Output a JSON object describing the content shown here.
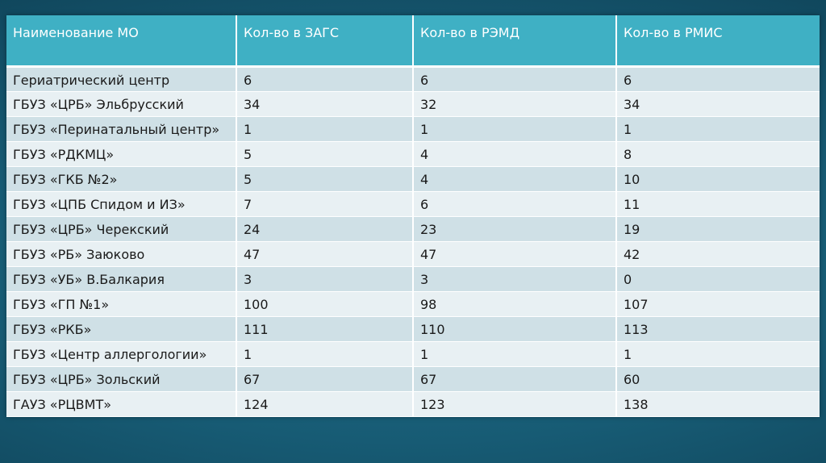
{
  "table": {
    "headers": [
      "Наименование МО",
      "Кол-во в ЗАГС",
      "Кол-во в РЭМД",
      "Кол-во в РМИС"
    ],
    "rows": [
      [
        "Гериатрический центр",
        "6",
        "6",
        "6"
      ],
      [
        "ГБУЗ «ЦРБ» Эльбрусский",
        "34",
        "32",
        "34"
      ],
      [
        "ГБУЗ «Перинатальный центр»",
        "1",
        "1",
        "1"
      ],
      [
        "ГБУЗ «РДКМЦ»",
        "5",
        "4",
        "8"
      ],
      [
        "ГБУЗ «ГКБ №2»",
        "5",
        "4",
        "10"
      ],
      [
        "ГБУЗ «ЦПБ Спидом и ИЗ»",
        "7",
        "6",
        "11"
      ],
      [
        "ГБУЗ «ЦРБ» Черекский",
        "24",
        "23",
        "19"
      ],
      [
        "ГБУЗ «РБ» Заюково",
        "47",
        "47",
        "42"
      ],
      [
        "ГБУЗ «УБ» В.Балкария",
        "3",
        "3",
        "0"
      ],
      [
        "ГБУЗ «ГП №1»",
        "100",
        "98",
        "107"
      ],
      [
        "ГБУЗ «РКБ»",
        "111",
        "110",
        "113"
      ],
      [
        "ГБУЗ «Центр аллергологии»",
        "1",
        "1",
        "1"
      ],
      [
        "ГБУЗ «ЦРБ» Зольский",
        "67",
        "67",
        "60"
      ],
      [
        "ГАУЗ «РЦВМТ»",
        "124",
        "123",
        "138"
      ]
    ]
  },
  "colors": {
    "header_bg": "#3fb0c4",
    "row_odd": "#cfe0e6",
    "row_even": "#e8f0f3",
    "background": "#175b74"
  }
}
